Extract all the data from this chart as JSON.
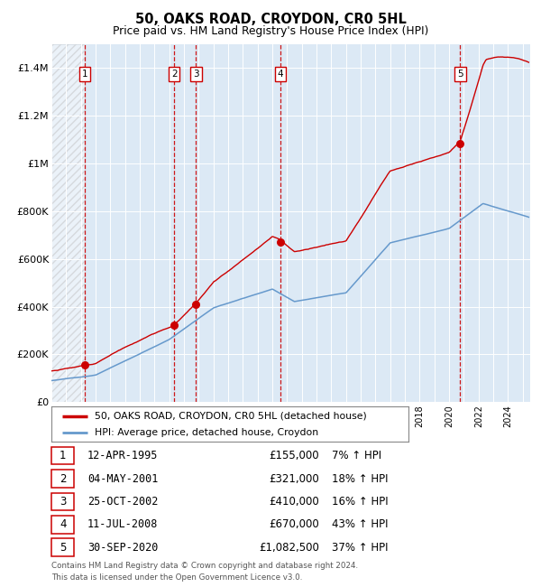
{
  "title": "50, OAKS ROAD, CROYDON, CR0 5HL",
  "subtitle": "Price paid vs. HM Land Registry's House Price Index (HPI)",
  "xlim": [
    1993.0,
    2025.5
  ],
  "ylim": [
    0,
    1500000
  ],
  "yticks": [
    0,
    200000,
    400000,
    600000,
    800000,
    1000000,
    1200000,
    1400000
  ],
  "ytick_labels": [
    "£0",
    "£200K",
    "£400K",
    "£600K",
    "£800K",
    "£1M",
    "£1.2M",
    "£1.4M"
  ],
  "background_color": "#dce9f5",
  "hatch_region_end": 1995.27,
  "sale_points": [
    {
      "num": 1,
      "year": 1995.27,
      "price": 155000
    },
    {
      "num": 2,
      "year": 2001.34,
      "price": 321000
    },
    {
      "num": 3,
      "year": 2002.81,
      "price": 410000
    },
    {
      "num": 4,
      "year": 2008.53,
      "price": 670000
    },
    {
      "num": 5,
      "year": 2020.75,
      "price": 1082500
    }
  ],
  "legend_line1": "50, OAKS ROAD, CROYDON, CR0 5HL (detached house)",
  "legend_line2": "HPI: Average price, detached house, Croydon",
  "footer": "Contains HM Land Registry data © Crown copyright and database right 2024.\nThis data is licensed under the Open Government Licence v3.0.",
  "price_line_color": "#cc0000",
  "hpi_line_color": "#6699cc",
  "vline_color": "#cc0000",
  "marker_color": "#cc0000",
  "table_rows": [
    {
      "num": 1,
      "date": "12-APR-1995",
      "price": "£155,000",
      "pct": "7% ↑ HPI"
    },
    {
      "num": 2,
      "date": "04-MAY-2001",
      "price": "£321,000",
      "pct": "18% ↑ HPI"
    },
    {
      "num": 3,
      "date": "25-OCT-2002",
      "price": "£410,000",
      "pct": "16% ↑ HPI"
    },
    {
      "num": 4,
      "date": "11-JUL-2008",
      "price": "£670,000",
      "pct": "43% ↑ HPI"
    },
    {
      "num": 5,
      "date": "30-SEP-2020",
      "price": "£1,082,500",
      "pct": "37% ↑ HPI"
    }
  ]
}
